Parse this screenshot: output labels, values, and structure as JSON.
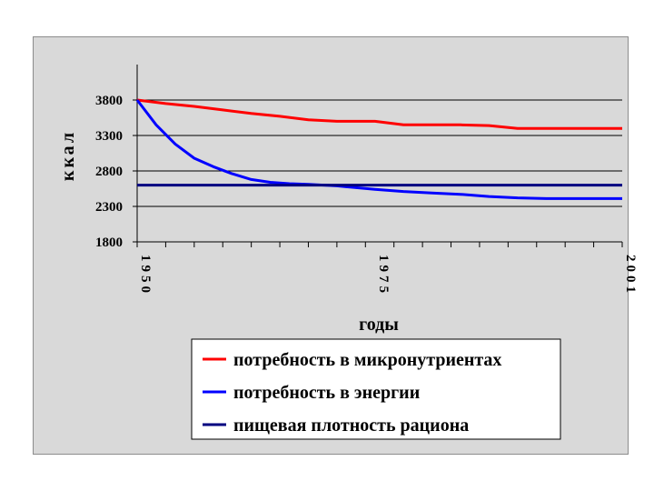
{
  "chart_data": {
    "type": "line",
    "title": "",
    "xlabel": "годы",
    "ylabel": "ккал",
    "xlim": [
      1950,
      2001
    ],
    "ylim": [
      1800,
      4300
    ],
    "yticks": [
      1800,
      2300,
      2800,
      3300,
      3800
    ],
    "xtick_labels": [
      "1950",
      "1975",
      "2001"
    ],
    "xtick_values": [
      1950,
      1975,
      2001
    ],
    "grid": true,
    "legend_position": "bottom",
    "series": [
      {
        "name": "потребность в микронутриентах",
        "color": "#ff0000",
        "x": [
          1950,
          1953,
          1956,
          1959,
          1962,
          1965,
          1968,
          1971,
          1975,
          1978,
          1981,
          1984,
          1987,
          1990,
          1993,
          1996,
          1999,
          2001
        ],
        "y": [
          3800,
          3750,
          3710,
          3660,
          3610,
          3570,
          3520,
          3500,
          3500,
          3450,
          3450,
          3450,
          3440,
          3400,
          3400,
          3400,
          3400,
          3400
        ]
      },
      {
        "name": "потребность в энергии",
        "color": "#0000ff",
        "x": [
          1950,
          1952,
          1954,
          1956,
          1958,
          1960,
          1962,
          1964,
          1966,
          1968,
          1971,
          1975,
          1978,
          1981,
          1984,
          1987,
          1990,
          1993,
          1996,
          1999,
          2001
        ],
        "y": [
          3800,
          3450,
          3180,
          2980,
          2860,
          2760,
          2680,
          2640,
          2620,
          2610,
          2590,
          2540,
          2510,
          2490,
          2470,
          2440,
          2420,
          2410,
          2410,
          2410,
          2410
        ]
      },
      {
        "name": "пищевая плотность рациона",
        "color": "#000080",
        "x": [
          1950,
          2001
        ],
        "y": [
          2600,
          2600
        ]
      }
    ]
  }
}
